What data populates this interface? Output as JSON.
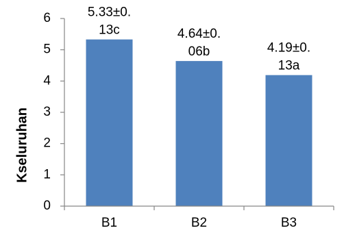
{
  "chart_data": {
    "type": "bar",
    "title": "",
    "xlabel": "",
    "ylabel": "Kseluruhan",
    "categories": [
      "B1",
      "B2",
      "B3"
    ],
    "values": [
      5.33,
      4.64,
      4.19
    ],
    "data_labels": [
      [
        "5.33±0.",
        "13c"
      ],
      [
        "4.64±0.",
        "06b"
      ],
      [
        "4.19±0.",
        "13a"
      ]
    ],
    "ylim": [
      0,
      6
    ],
    "yticks": [
      "0",
      "1",
      "2",
      "3",
      "4",
      "5",
      "6"
    ],
    "grid": false,
    "legend": "none",
    "bar_color": "#4f81bd",
    "axis_color": "#868686"
  }
}
